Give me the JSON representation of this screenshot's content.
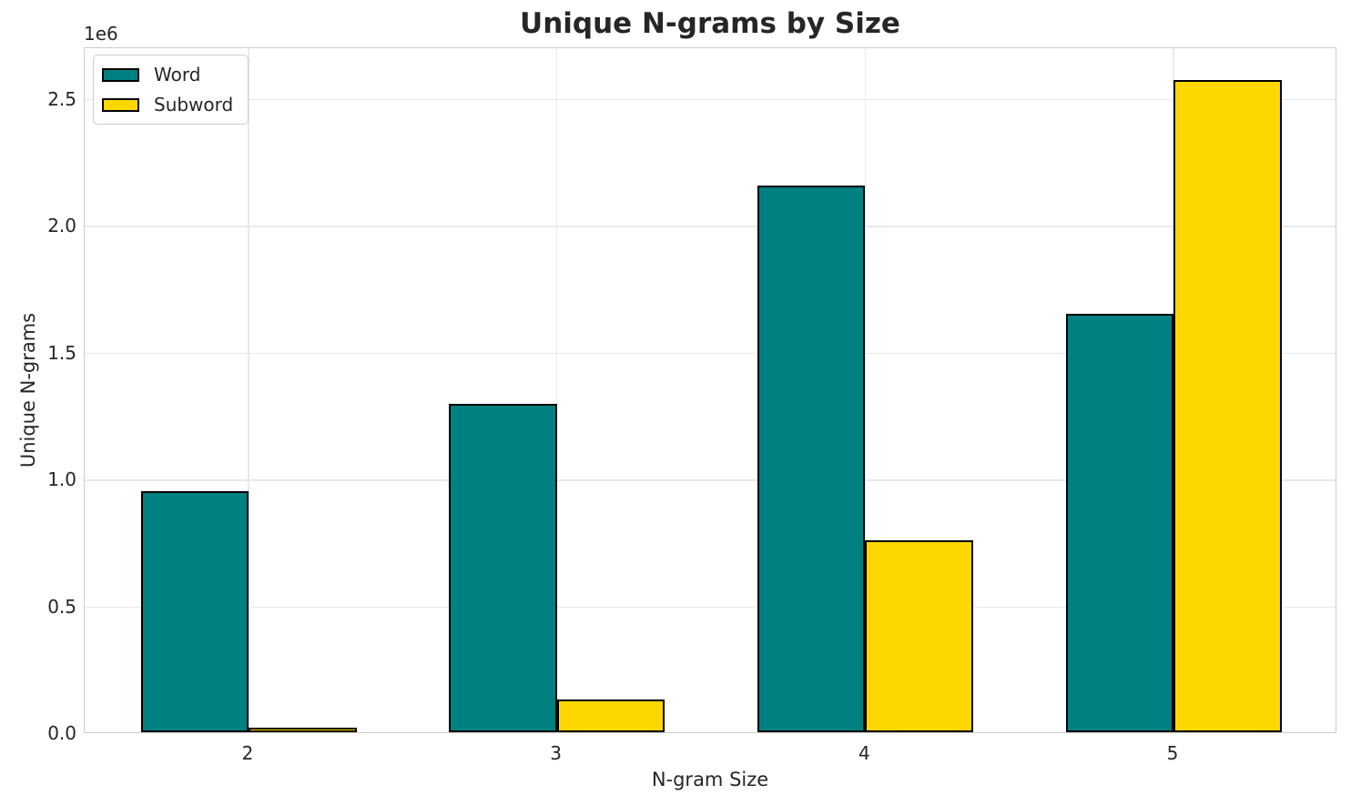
{
  "chart_data": {
    "type": "bar",
    "title": "Unique N-grams by Size",
    "xlabel": "N-gram Size",
    "ylabel": "Unique N-grams",
    "categories": [
      "2",
      "3",
      "4",
      "5"
    ],
    "series": [
      {
        "name": "Word",
        "color": "#008080",
        "values": [
          950000,
          1295000,
          2155000,
          1650000
        ]
      },
      {
        "name": "Subword",
        "color": "#FFD700",
        "values": [
          13000,
          130000,
          755000,
          2570000
        ]
      }
    ],
    "bar_edge_color": "#000000",
    "ylim": [
      0,
      2703000
    ],
    "yticks": [
      0,
      500000,
      1000000,
      1500000,
      2000000,
      2500000
    ],
    "ytick_labels": [
      "0.0",
      "0.5",
      "1.0",
      "1.5",
      "2.0",
      "2.5"
    ],
    "y_scale_offset_label": "1e6",
    "grid": true,
    "legend": {
      "position": "upper left",
      "entries": [
        "Word",
        "Subword"
      ]
    },
    "style": {
      "background": "#ffffff",
      "grid_color": "#e9e9e9",
      "spine_color": "#cccccc",
      "text_color": "#262626"
    }
  }
}
